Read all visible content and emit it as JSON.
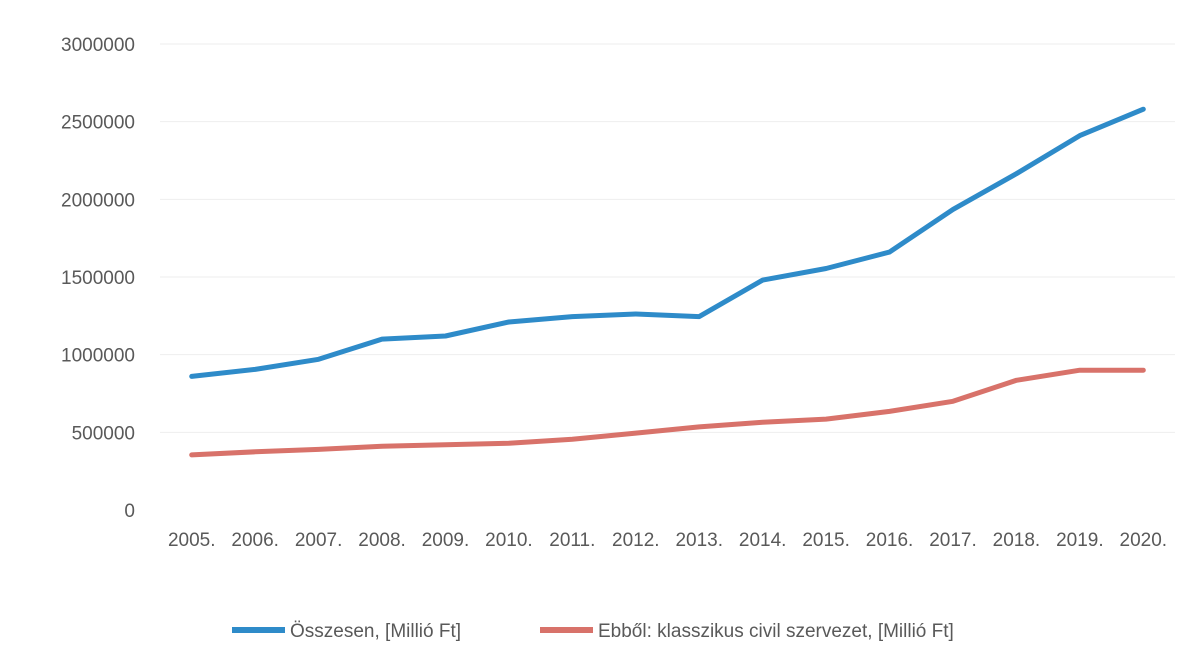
{
  "chart_data": {
    "type": "line",
    "categories": [
      "2005.",
      "2006.",
      "2007.",
      "2008.",
      "2009.",
      "2010.",
      "2011.",
      "2012.",
      "2013.",
      "2014.",
      "2015.",
      "2016.",
      "2017.",
      "2018.",
      "2019.",
      "2020."
    ],
    "y_ticks": [
      "0",
      "500000",
      "1000000",
      "1500000",
      "2000000",
      "2500000",
      "3000000"
    ],
    "ylim": [
      0,
      3000000
    ],
    "grid": true,
    "legend_position": "bottom",
    "series": [
      {
        "name": "Összesen, [Millió Ft]",
        "color": "#2e8bc9",
        "values": [
          860000,
          905000,
          970000,
          1100000,
          1120000,
          1210000,
          1245000,
          1262000,
          1245000,
          1480000,
          1555000,
          1660000,
          1935000,
          2165000,
          2410000,
          2580000
        ]
      },
      {
        "name": "Ebből: klasszikus civil szervezet, [Millió Ft]",
        "color": "#d8726a",
        "values": [
          355000,
          375000,
          390000,
          410000,
          420000,
          430000,
          455000,
          495000,
          535000,
          565000,
          585000,
          635000,
          700000,
          835000,
          900000,
          900000
        ]
      }
    ]
  }
}
